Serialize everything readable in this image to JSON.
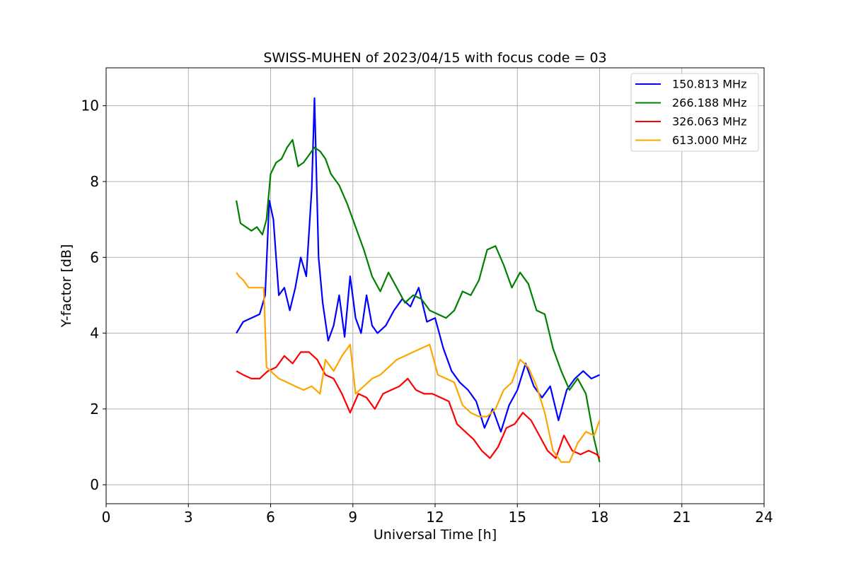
{
  "chart_data": {
    "type": "line",
    "title": "SWISS-MUHEN of 2023/04/15 with focus code = 03",
    "xlabel": "Universal Time [h]",
    "ylabel": "Y-factor [dB]",
    "xlim": [
      0,
      24
    ],
    "ylim": [
      -0.5,
      11.0
    ],
    "xticks": [
      0,
      3,
      6,
      9,
      12,
      15,
      18,
      21,
      24
    ],
    "yticks": [
      0,
      2,
      4,
      6,
      8,
      10
    ],
    "xtick_labels": [
      "0",
      "3",
      "6",
      "9",
      "12",
      "15",
      "18",
      "21",
      "24"
    ],
    "ytick_labels": [
      "0",
      "2",
      "4",
      "6",
      "8",
      "10"
    ],
    "grid": true,
    "legend_position": "top-right",
    "series": [
      {
        "name": "150.813 MHz",
        "color": "#0000ff",
        "x": [
          4.75,
          5.0,
          5.3,
          5.6,
          5.8,
          5.95,
          6.1,
          6.3,
          6.5,
          6.7,
          6.9,
          7.1,
          7.3,
          7.5,
          7.6,
          7.75,
          7.9,
          8.1,
          8.3,
          8.5,
          8.7,
          8.9,
          9.1,
          9.3,
          9.5,
          9.7,
          9.9,
          10.2,
          10.5,
          10.8,
          11.1,
          11.4,
          11.7,
          12.0,
          12.3,
          12.6,
          12.9,
          13.2,
          13.5,
          13.8,
          14.1,
          14.4,
          14.7,
          15.0,
          15.3,
          15.6,
          15.9,
          16.2,
          16.5,
          16.8,
          17.1,
          17.4,
          17.7,
          18.0
        ],
        "y": [
          4.0,
          4.3,
          4.4,
          4.5,
          5.0,
          7.5,
          7.0,
          5.0,
          5.2,
          4.6,
          5.2,
          6.0,
          5.5,
          7.8,
          10.2,
          6.0,
          4.8,
          3.8,
          4.2,
          5.0,
          3.9,
          5.5,
          4.4,
          4.0,
          5.0,
          4.2,
          4.0,
          4.2,
          4.6,
          4.9,
          4.7,
          5.2,
          4.3,
          4.4,
          3.6,
          3.0,
          2.7,
          2.5,
          2.2,
          1.5,
          2.0,
          1.4,
          2.1,
          2.5,
          3.2,
          2.6,
          2.3,
          2.6,
          1.7,
          2.5,
          2.8,
          3.0,
          2.8,
          2.9
        ]
      },
      {
        "name": "266.188 MHz",
        "color": "#008000",
        "x": [
          4.75,
          4.9,
          5.1,
          5.3,
          5.5,
          5.7,
          5.85,
          6.0,
          6.2,
          6.4,
          6.6,
          6.8,
          7.0,
          7.2,
          7.4,
          7.6,
          7.8,
          8.0,
          8.2,
          8.5,
          8.8,
          9.1,
          9.4,
          9.7,
          10.0,
          10.3,
          10.6,
          10.9,
          11.2,
          11.5,
          11.8,
          12.1,
          12.4,
          12.7,
          13.0,
          13.3,
          13.6,
          13.9,
          14.2,
          14.5,
          14.8,
          15.1,
          15.4,
          15.7,
          16.0,
          16.3,
          16.6,
          16.9,
          17.2,
          17.5,
          17.8,
          18.0
        ],
        "y": [
          7.5,
          6.9,
          6.8,
          6.7,
          6.8,
          6.6,
          7.0,
          8.2,
          8.5,
          8.6,
          8.9,
          9.1,
          8.4,
          8.5,
          8.7,
          8.9,
          8.8,
          8.6,
          8.2,
          7.9,
          7.4,
          6.8,
          6.2,
          5.5,
          5.1,
          5.6,
          5.2,
          4.8,
          5.0,
          4.9,
          4.6,
          4.5,
          4.4,
          4.6,
          5.1,
          5.0,
          5.4,
          6.2,
          6.3,
          5.8,
          5.2,
          5.6,
          5.3,
          4.6,
          4.5,
          3.6,
          3.0,
          2.5,
          2.8,
          2.4,
          1.2,
          0.6
        ]
      },
      {
        "name": "326.063 MHz",
        "color": "#ff0000",
        "x": [
          4.75,
          5.0,
          5.3,
          5.6,
          5.9,
          6.2,
          6.5,
          6.8,
          7.1,
          7.4,
          7.7,
          8.0,
          8.3,
          8.6,
          8.9,
          9.2,
          9.5,
          9.8,
          10.1,
          10.4,
          10.7,
          11.0,
          11.3,
          11.6,
          11.9,
          12.2,
          12.5,
          12.8,
          13.1,
          13.4,
          13.7,
          14.0,
          14.3,
          14.6,
          14.9,
          15.2,
          15.5,
          15.8,
          16.1,
          16.4,
          16.7,
          17.0,
          17.3,
          17.6,
          17.9,
          18.0
        ],
        "y": [
          3.0,
          2.9,
          2.8,
          2.8,
          3.0,
          3.1,
          3.4,
          3.2,
          3.5,
          3.5,
          3.3,
          2.9,
          2.8,
          2.4,
          1.9,
          2.4,
          2.3,
          2.0,
          2.4,
          2.5,
          2.6,
          2.8,
          2.5,
          2.4,
          2.4,
          2.3,
          2.2,
          1.6,
          1.4,
          1.2,
          0.9,
          0.7,
          1.0,
          1.5,
          1.6,
          1.9,
          1.7,
          1.3,
          0.9,
          0.7,
          1.3,
          0.9,
          0.8,
          0.9,
          0.8,
          0.7
        ]
      },
      {
        "name": "613.000 MHz",
        "color": "#ffa500",
        "x": [
          4.75,
          4.85,
          5.0,
          5.2,
          5.4,
          5.6,
          5.75,
          5.85,
          6.0,
          6.3,
          6.6,
          6.9,
          7.2,
          7.5,
          7.8,
          8.0,
          8.3,
          8.6,
          8.9,
          9.1,
          9.4,
          9.7,
          10.0,
          10.3,
          10.6,
          10.9,
          11.2,
          11.5,
          11.8,
          12.1,
          12.4,
          12.7,
          13.0,
          13.3,
          13.6,
          13.9,
          14.2,
          14.5,
          14.8,
          15.1,
          15.4,
          15.7,
          16.0,
          16.3,
          16.6,
          16.9,
          17.2,
          17.5,
          17.8,
          18.0
        ],
        "y": [
          5.6,
          5.5,
          5.4,
          5.2,
          5.2,
          5.2,
          5.2,
          3.1,
          3.0,
          2.8,
          2.7,
          2.6,
          2.5,
          2.6,
          2.4,
          3.3,
          3.0,
          3.4,
          3.7,
          2.4,
          2.6,
          2.8,
          2.9,
          3.1,
          3.3,
          3.4,
          3.5,
          3.6,
          3.7,
          2.9,
          2.8,
          2.7,
          2.1,
          1.9,
          1.8,
          1.8,
          2.0,
          2.5,
          2.7,
          3.3,
          3.1,
          2.6,
          1.9,
          0.9,
          0.6,
          0.6,
          1.1,
          1.4,
          1.3,
          1.7
        ]
      }
    ]
  }
}
